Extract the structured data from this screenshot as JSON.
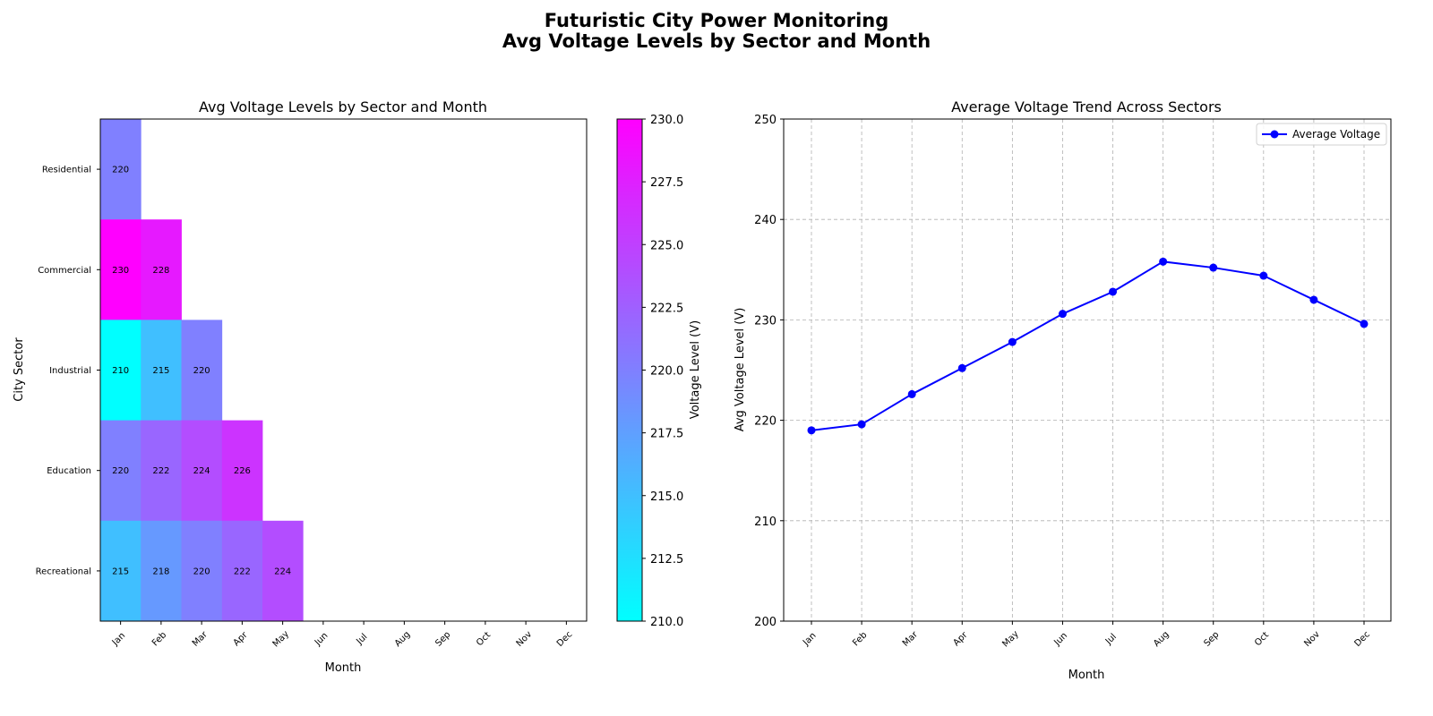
{
  "figure": {
    "title_line1": "Futuristic City Power Monitoring",
    "title_line2": "Avg Voltage Levels by Sector and Month"
  },
  "chart_data": [
    {
      "type": "heatmap",
      "title": "Avg Voltage Levels by Sector and Month",
      "xlabel": "Month",
      "ylabel": "City Sector",
      "x_categories": [
        "Jan",
        "Feb",
        "Mar",
        "Apr",
        "May",
        "Jun",
        "Jul",
        "Aug",
        "Sep",
        "Oct",
        "Nov",
        "Dec"
      ],
      "y_categories": [
        "Residential",
        "Commercial",
        "Industrial",
        "Education",
        "Recreational"
      ],
      "values": [
        [
          220,
          null,
          null,
          null,
          null,
          null,
          null,
          null,
          null,
          null,
          null,
          null
        ],
        [
          230,
          228,
          null,
          null,
          null,
          null,
          null,
          null,
          null,
          null,
          null,
          null
        ],
        [
          210,
          215,
          220,
          null,
          null,
          null,
          null,
          null,
          null,
          null,
          null,
          null
        ],
        [
          220,
          222,
          224,
          226,
          null,
          null,
          null,
          null,
          null,
          null,
          null,
          null
        ],
        [
          215,
          218,
          220,
          222,
          224,
          null,
          null,
          null,
          null,
          null,
          null,
          null
        ]
      ],
      "colormap": "cool",
      "colormap_low": "#00ffff",
      "colormap_high": "#ff00ff",
      "colorbar": {
        "label": "Voltage Level (V)",
        "range": [
          210,
          230
        ],
        "ticks": [
          "210.0",
          "212.5",
          "215.0",
          "217.5",
          "220.0",
          "222.5",
          "225.0",
          "227.5",
          "230.0"
        ]
      }
    },
    {
      "type": "line",
      "title": "Average Voltage Trend Across Sectors",
      "xlabel": "Month",
      "ylabel": "Avg Voltage Level (V)",
      "categories": [
        "Jan",
        "Feb",
        "Mar",
        "Apr",
        "May",
        "Jun",
        "Jul",
        "Aug",
        "Sep",
        "Oct",
        "Nov",
        "Dec"
      ],
      "series": [
        {
          "name": "Average Voltage",
          "color": "#0000ff",
          "values": [
            219.0,
            219.6,
            222.6,
            225.2,
            227.8,
            230.6,
            232.8,
            235.8,
            235.2,
            234.4,
            232.0,
            229.6
          ]
        }
      ],
      "ylim": [
        200,
        250
      ],
      "yticks": [
        200,
        210,
        220,
        230,
        240,
        250
      ],
      "grid": true,
      "legend": "top-right"
    }
  ]
}
